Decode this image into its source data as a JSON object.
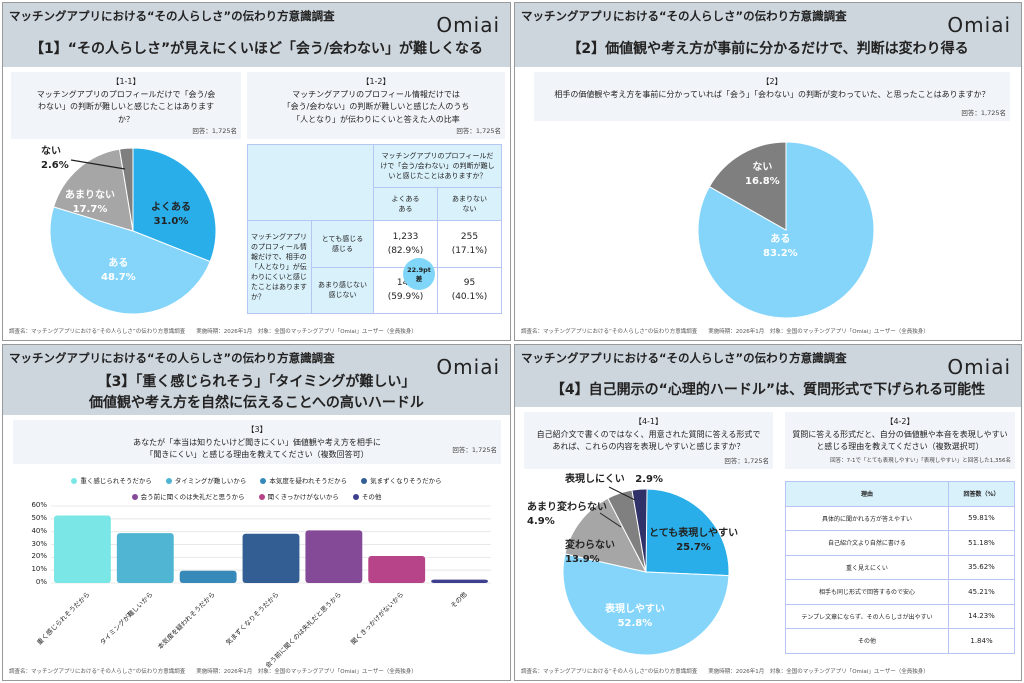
{
  "survey_title": "マッチングアプリにおける“その人らしさ”の伝わり方意識調査",
  "logo": "Omiai",
  "footer": "調査名：マッチングアプリにおける“その人らしさ”の伝わり方意識調査　　実施時期：2026年1月　対象：全国のマッチングアプリ「Omiai」ユーザー（全員独身）",
  "colors": {
    "header": "#cdd5dd",
    "blue_dark": "#29aee9",
    "blue_light": "#85d5fb",
    "gray_light": "#a6a6a6",
    "gray": "#7f7f7f",
    "navy": "#2f3168"
  },
  "p1": {
    "subtitle": "【1】“その人らしさ”が見えにくいほど「会う/会わない」が難しくなる",
    "q1": {
      "num": "【1-1】",
      "text": "マッチングアプリのプロフィールだけで「会う/会わない」の判断が難しいと感じたことはありますか？",
      "resp": "回答：1,725名"
    },
    "q2": {
      "num": "【1-2】",
      "text1": "マッチングアプリのプロフィール情報だけでは",
      "text2": "「会う/会わない」の判断が難しいと感じた人のうち",
      "text3": "「人となり」が伝わりにくいと答えた人の比率",
      "resp": "回答：1,725名"
    },
    "table": {
      "col_header": "マッチングアプリのプロフィールだけで「会う/会わない」の判断が難しいと感じたことはありますか？",
      "col1": "よくある\nある",
      "col2": "あまりない\nない",
      "row_header": "マッチングアプリのプロフィール情報だけで、相手の「人となり」が伝わりにくいと感じたことはありますか？",
      "row1": "とても感じる\n感じる",
      "row2": "あまり感じない\n感じない",
      "c11": "1,233\n(82.9%)",
      "c12": "255\n(17.1%)",
      "c21": "142\n(59.9%)",
      "c22": "95\n(40.1%)",
      "diff": "22.9pt\n差"
    }
  },
  "p2": {
    "subtitle": "【2】価値観や考え方が事前に分かるだけで、判断は変わり得る",
    "q": {
      "num": "【2】",
      "text": "相手の価値観や考え方を事前に分かっていれば「会う」「会わない」の判断が変わっていた、と思ったことはありますか？",
      "resp": "回答：1,725名"
    }
  },
  "p3": {
    "subtitle1": "【3】「重く感じられそう」「タイミングが難しい」",
    "subtitle2": "価値観や考え方を自然に伝えることへの高いハードル",
    "q": {
      "num": "【3】",
      "text": "あなたが「本当は知りたいけど聞きにくい」価値観や考え方を相手に「聞きにくい」と感じる理由を教えてください（複数回答可）",
      "resp": "回答：1,725名"
    }
  },
  "p4": {
    "subtitle": "【4】自己開示の“心理的ハードル”は、質問形式で下げられる可能性",
    "q1": {
      "num": "【4-1】",
      "text": "自己紹介文で書くのではなく、用意された質問に答える形式であれば、これらの内容を表現しやすいと感じますか？",
      "resp": "回答：1,725名"
    },
    "q2": {
      "num": "【4-2】",
      "text": "質問に答える形式だと、自分の価値観や本音を表現しやすいと感じる理由を教えてください（複数選択可）",
      "resp": "回答：7-1で「とても表現しやすい」「表現しやすい」と回答した1,356名"
    },
    "table": {
      "headers": [
        "理由",
        "回答数（%）"
      ],
      "rows": [
        [
          "具体的に聞かれる方が答えやすい",
          "59.81%"
        ],
        [
          "自己紹介文より自然に書ける",
          "51.18%"
        ],
        [
          "重く見えにくい",
          "35.62%"
        ],
        [
          "相手も同じ形式で回答するので安心",
          "45.21%"
        ],
        [
          "テンプレ文章にならず、その人らしさが出やすい",
          "14.23%"
        ],
        [
          "その他",
          "1.84%"
        ]
      ]
    }
  },
  "chart_data": [
    {
      "type": "pie",
      "title": "【1-1】",
      "slices": [
        {
          "label": "よくある",
          "value": 31.0,
          "display": "31.0%",
          "color": "#29aee9"
        },
        {
          "label": "ある",
          "value": 48.7,
          "display": "48.7%",
          "color": "#85d5fb"
        },
        {
          "label": "あまりない",
          "value": 17.7,
          "display": "17.7%",
          "color": "#a6a6a6"
        },
        {
          "label": "ない",
          "value": 2.6,
          "display": "2.6%",
          "color": "#7f7f7f"
        }
      ]
    },
    {
      "type": "pie",
      "title": "【2】",
      "slices": [
        {
          "label": "ある",
          "value": 83.2,
          "display": "83.2%",
          "color": "#85d5fb"
        },
        {
          "label": "ない",
          "value": 16.8,
          "display": "16.8%",
          "color": "#7f7f7f"
        }
      ]
    },
    {
      "type": "bar",
      "title": "【3】",
      "categories": [
        "重く感じられそうだから",
        "タイミングが難しいから",
        "本気度を疑われそうだから",
        "気まずくなりそうだから",
        "会う前に聞くのは失礼だと思うから",
        "聞くきっかけがないから",
        "その他"
      ],
      "values": [
        52.6,
        38.9,
        9.5,
        38.4,
        41.0,
        21.0,
        2.6
      ],
      "colors": [
        "#7ae6e6",
        "#4fb5d3",
        "#3689b8",
        "#325e93",
        "#844997",
        "#b74488",
        "#3e3f8e"
      ],
      "yticks": [
        "0%",
        "10%",
        "20%",
        "30%",
        "40%",
        "50%",
        "60%"
      ],
      "ylim": [
        0,
        60
      ],
      "legend": "top",
      "grid": true
    },
    {
      "type": "pie",
      "title": "【4-1】",
      "slices": [
        {
          "label": "とても表現しやすい",
          "value": 25.7,
          "display": "25.7%",
          "color": "#29aee9"
        },
        {
          "label": "表現しやすい",
          "value": 52.8,
          "display": "52.8%",
          "color": "#85d5fb"
        },
        {
          "label": "変わらない",
          "value": 13.9,
          "display": "13.9%",
          "color": "#a6a6a6"
        },
        {
          "label": "あまり変わらない",
          "value": 4.9,
          "display": "4.9%",
          "color": "#808080"
        },
        {
          "label": "表現しにくい",
          "value": 2.9,
          "display": "2.9%",
          "color": "#2f3168"
        }
      ]
    }
  ]
}
